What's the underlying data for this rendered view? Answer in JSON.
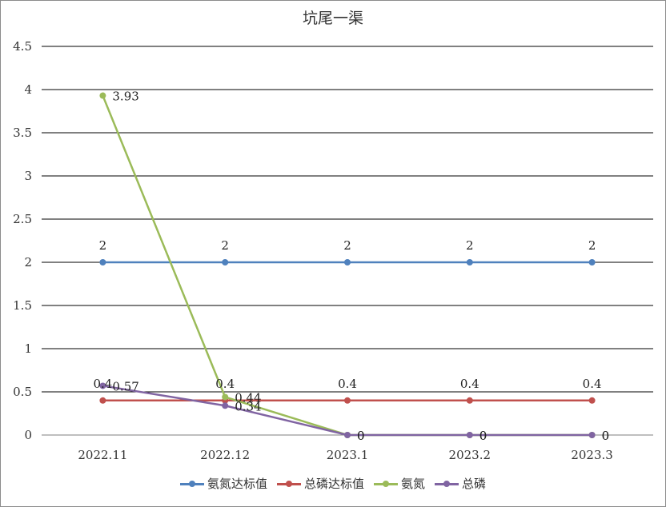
{
  "chart_data": {
    "type": "line",
    "title": "坑尾一渠",
    "categories": [
      "2022.11",
      "2022.12",
      "2023.1",
      "2023.2",
      "2023.3"
    ],
    "ylim": [
      0,
      4.5
    ],
    "yticks": [
      "0",
      "0.5",
      "1",
      "1.5",
      "2",
      "2.5",
      "3",
      "3.5",
      "4",
      "4.5"
    ],
    "grid": true,
    "legend_position": "bottom",
    "series": [
      {
        "name": "氨氮达标值",
        "color": "#4f81bd",
        "values": [
          2,
          2,
          2,
          2,
          2
        ],
        "labels": [
          "2",
          "2",
          "2",
          "2",
          "2"
        ]
      },
      {
        "name": "总磷达标值",
        "color": "#c0504d",
        "values": [
          0.4,
          0.4,
          0.4,
          0.4,
          0.4
        ],
        "labels": [
          "0.4",
          "0.4",
          "0.4",
          "0.4",
          "0.4"
        ]
      },
      {
        "name": "氨氮",
        "color": "#9bbb59",
        "values": [
          3.93,
          0.44,
          0,
          0,
          0
        ],
        "labels": [
          "3.93",
          "0.44",
          "0",
          "0",
          "0"
        ]
      },
      {
        "name": "总磷",
        "color": "#8064a2",
        "values": [
          0.57,
          0.34,
          0,
          0,
          0
        ],
        "labels": [
          "0.57",
          "0.34",
          "0",
          "0",
          "0"
        ]
      }
    ]
  }
}
